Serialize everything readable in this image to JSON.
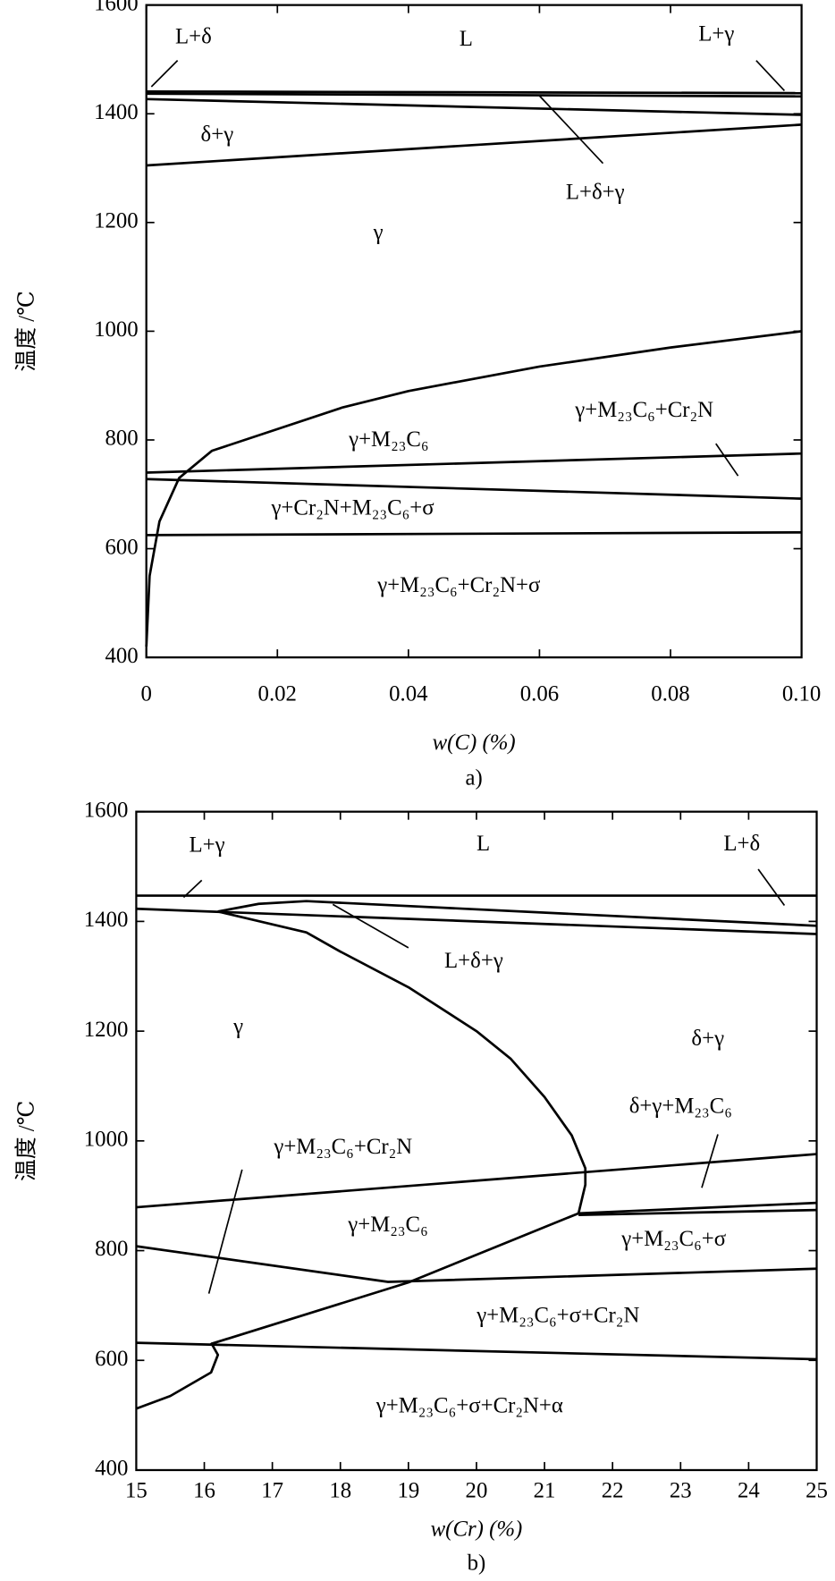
{
  "chart_data": [
    {
      "type": "line",
      "caption": "a)",
      "x_label": "w(C) (%)",
      "y_label": "温度 /℃",
      "xlim": [
        0,
        0.1
      ],
      "xticks": [
        0,
        0.02,
        0.04,
        0.06,
        0.08,
        {
          "value": 0.1,
          "label": "0.10"
        }
      ],
      "ylim": [
        400,
        1600
      ],
      "yticks": [
        400,
        600,
        800,
        1000,
        1200,
        1400,
        1600
      ],
      "series": [
        {
          "color": "#000000",
          "x": [
            0,
            0.1
          ],
          "values": [
            1441,
            1438
          ]
        },
        {
          "color": "#000000",
          "x": [
            0,
            0.1
          ],
          "values": [
            1437,
            1432
          ]
        },
        {
          "color": "#000000",
          "x": [
            0,
            0.1
          ],
          "values": [
            1427,
            1398
          ]
        },
        {
          "color": "#000000",
          "x": [
            0,
            0.1
          ],
          "values": [
            1305,
            1380
          ]
        },
        {
          "color": "#000000",
          "x": [
            0,
            0.0005,
            0.002,
            0.005,
            0.01,
            0.015,
            0.03,
            0.04,
            0.06,
            0.08,
            0.1
          ],
          "values": [
            420,
            550,
            650,
            730,
            780,
            800,
            860,
            890,
            935,
            970,
            1000
          ]
        },
        {
          "color": "#000000",
          "x": [
            0,
            0.1
          ],
          "values": [
            740,
            775
          ]
        },
        {
          "color": "#000000",
          "x": [
            0,
            0.1
          ],
          "values": [
            728,
            692
          ]
        },
        {
          "color": "#000000",
          "x": [
            0,
            0.1
          ],
          "values": [
            625,
            630
          ]
        }
      ],
      "annotations": [
        {
          "text": "L+δ",
          "x": 0.0072,
          "y": 1539
        },
        {
          "text": "L",
          "x": 0.0488,
          "y": 1535
        },
        {
          "text": "L+γ",
          "x": 0.087,
          "y": 1544
        },
        {
          "text": "δ+γ",
          "x": 0.0108,
          "y": 1359
        },
        {
          "text": "L+δ+γ",
          "x": 0.0685,
          "y": 1253
        },
        {
          "text": "γ",
          "x": 0.0354,
          "y": 1179
        },
        {
          "text": "γ+M₂₃C₆+Cr₂N",
          "x": 0.076,
          "y": 852
        },
        {
          "text": "γ+M₂₃C₆",
          "x": 0.037,
          "y": 798
        },
        {
          "text": "γ+Cr₂N+M₂₃C₆+σ",
          "x": 0.0315,
          "y": 672
        },
        {
          "text": "γ+M₂₃C₆+Cr₂N+σ",
          "x": 0.0477,
          "y": 530
        }
      ]
    },
    {
      "type": "line",
      "caption": "b)",
      "x_label": "w(Cr) (%)",
      "y_label": "温度 /℃",
      "xlim": [
        15,
        25
      ],
      "xticks": [
        15,
        16,
        17,
        18,
        19,
        20,
        21,
        22,
        23,
        24,
        25
      ],
      "ylim": [
        400,
        1600
      ],
      "yticks": [
        400,
        600,
        800,
        1000,
        1200,
        1400,
        1600
      ],
      "series": [
        {
          "color": "#000000",
          "x": [
            15,
            25
          ],
          "values": [
            1447,
            1447
          ]
        },
        {
          "color": "#000000",
          "x": [
            16.2,
            16.8,
            17.5,
            25
          ],
          "values": [
            1418,
            1432,
            1437,
            1392
          ]
        },
        {
          "color": "#000000",
          "x": [
            15,
            25
          ],
          "values": [
            1423,
            1377
          ]
        },
        {
          "color": "#000000",
          "x": [
            16.2,
            17.5,
            18,
            19,
            20,
            20.5,
            21,
            21.4,
            21.6,
            21.6,
            21.5
          ],
          "values": [
            1418,
            1380,
            1345,
            1280,
            1200,
            1150,
            1080,
            1010,
            950,
            920,
            868
          ]
        },
        {
          "color": "#000000",
          "x": [
            15,
            25
          ],
          "values": [
            879,
            976
          ]
        },
        {
          "color": "#000000",
          "x": [
            21.5,
            25
          ],
          "values": [
            868,
            887
          ]
        },
        {
          "color": "#000000",
          "x": [
            21.5,
            25
          ],
          "values": [
            865,
            874
          ]
        },
        {
          "color": "#000000",
          "x": [
            21.5,
            19,
            16.1
          ],
          "values": [
            868,
            742,
            630
          ]
        },
        {
          "color": "#000000",
          "x": [
            15,
            18.7,
            25
          ],
          "values": [
            808,
            743,
            767
          ]
        },
        {
          "color": "#000000",
          "x": [
            15,
            25
          ],
          "values": [
            632,
            602
          ]
        },
        {
          "color": "#000000",
          "x": [
            16.1,
            16.2,
            16.1,
            15.5,
            15
          ],
          "values": [
            632,
            610,
            578,
            535,
            512
          ]
        }
      ],
      "annotations": [
        {
          "text": "L+γ",
          "x": 16.04,
          "y": 1536
        },
        {
          "text": "L",
          "x": 20.1,
          "y": 1539
        },
        {
          "text": "L+δ",
          "x": 23.9,
          "y": 1539
        },
        {
          "text": "L+δ+γ",
          "x": 19.96,
          "y": 1325
        },
        {
          "text": "γ",
          "x": 16.5,
          "y": 1205
        },
        {
          "text": "δ+γ",
          "x": 23.4,
          "y": 1183
        },
        {
          "text": "δ+γ+M₂₃C₆",
          "x": 23.0,
          "y": 1060
        },
        {
          "text": "γ+M₂₃C₆+Cr₂N",
          "x": 18.04,
          "y": 986
        },
        {
          "text": "γ+M₂₃C₆",
          "x": 18.7,
          "y": 844
        },
        {
          "text": "γ+M₂₃C₆+σ",
          "x": 22.9,
          "y": 818
        },
        {
          "text": "γ+M₂₃C₆+σ+Cr₂N",
          "x": 21.2,
          "y": 679
        },
        {
          "text": "γ+M₂₃C₆+σ+Cr₂N+α",
          "x": 19.9,
          "y": 514
        }
      ]
    }
  ]
}
